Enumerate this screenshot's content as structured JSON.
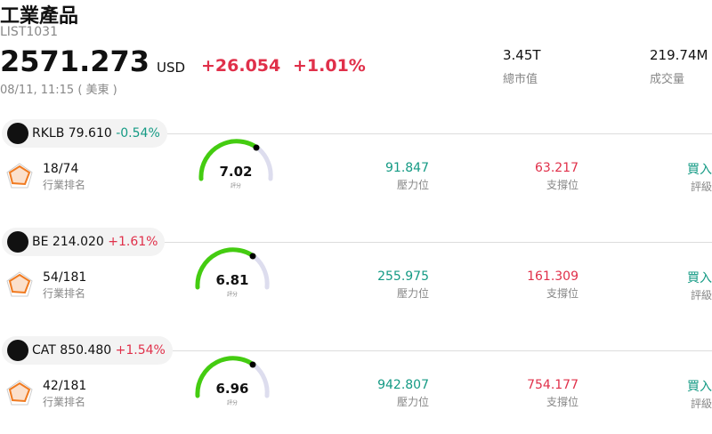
{
  "header": {
    "title": "工業產品",
    "code": "LIST1031",
    "price": "2571.273",
    "currency": "USD",
    "change": "+26.054",
    "change_percent": "+1.01%",
    "time": "08/11, 11:15 ( 美東 )",
    "stats": [
      {
        "value": "3.45T",
        "label": "總市值"
      },
      {
        "value": "219.74M",
        "label": "成交量"
      }
    ]
  },
  "stocks": [
    {
      "symbol": "RKLB",
      "price": "79.610",
      "change": "-0.54%",
      "rank": "18/74",
      "rank_label": "行業排名",
      "score": "7.02",
      "score_label": "評分",
      "resistance": "91.847",
      "resistance_label": "壓力位",
      "support": "63.217",
      "support_label": "支撐位",
      "rating": "買入",
      "rating_label": "評級"
    },
    {
      "symbol": "BE",
      "price": "214.020",
      "change": "+1.61%",
      "rank": "54/181",
      "rank_label": "行業排名",
      "score": "6.81",
      "score_label": "評分",
      "resistance": "255.975",
      "resistance_label": "壓力位",
      "support": "161.309",
      "support_label": "支撐位",
      "rating": "買入",
      "rating_label": "評級"
    },
    {
      "symbol": "CAT",
      "price": "850.480",
      "change": "+1.54%",
      "rank": "42/181",
      "rank_label": "行業排名",
      "score": "6.96",
      "score_label": "評分",
      "resistance": "942.807",
      "resistance_label": "壓力位",
      "support": "754.177",
      "support_label": "支撐位",
      "rating": "買入",
      "rating_label": "評級"
    }
  ]
}
